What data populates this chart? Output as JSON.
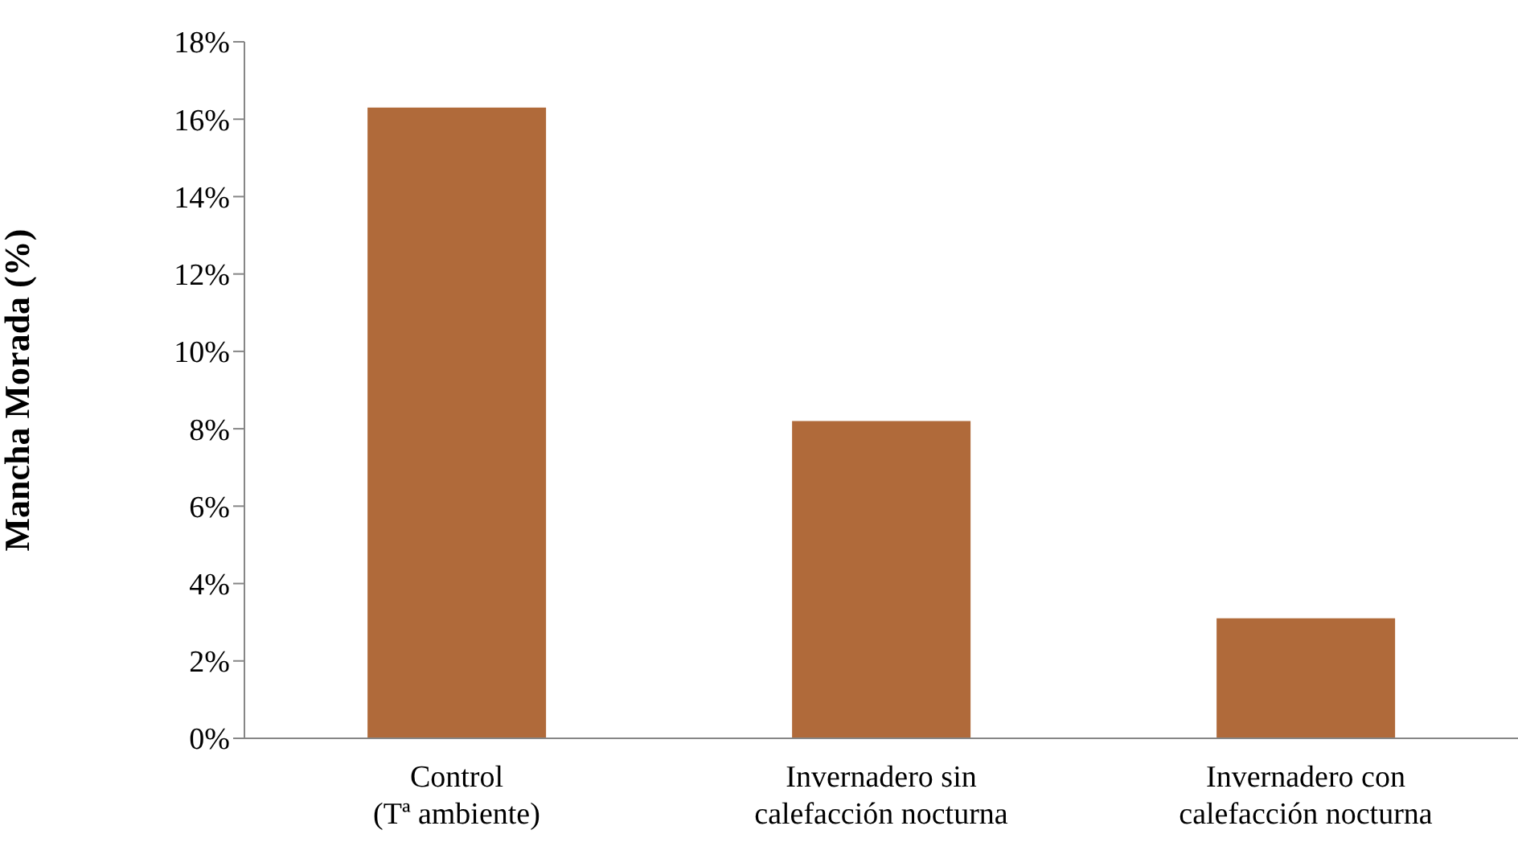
{
  "chart_data": {
    "type": "bar",
    "ylabel": "Mancha Morada (%)",
    "categories": [
      "Control\n(Tª ambiente)",
      "Invernadero sin\ncalefacción nocturna",
      "Invernadero con\ncalefacción nocturna"
    ],
    "values": [
      16.3,
      8.2,
      3.1
    ],
    "color": "#b06a3a",
    "ylim": [
      0,
      18
    ],
    "yticks": [
      {
        "value": 0,
        "label": "0%"
      },
      {
        "value": 2,
        "label": "2%"
      },
      {
        "value": 4,
        "label": "4%"
      },
      {
        "value": 6,
        "label": "6%"
      },
      {
        "value": 8,
        "label": "8%"
      },
      {
        "value": 10,
        "label": "10%"
      },
      {
        "value": 12,
        "label": "12%"
      },
      {
        "value": 14,
        "label": "14%"
      },
      {
        "value": 16,
        "label": "16%"
      },
      {
        "value": 18,
        "label": "18%"
      }
    ],
    "grid": false,
    "legend": false
  }
}
